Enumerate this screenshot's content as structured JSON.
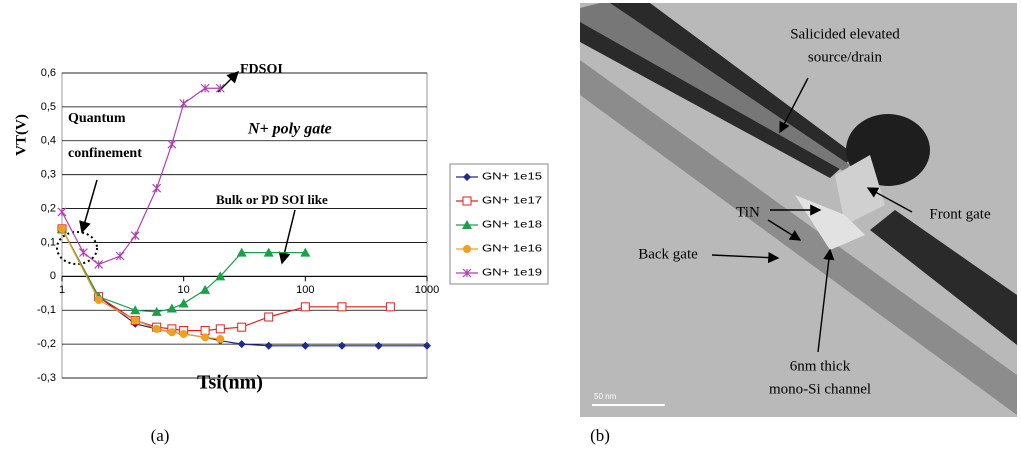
{
  "chart_data": {
    "type": "line",
    "x_label": "Tsi(nm)",
    "y_label": "VT(V)",
    "xscale": "log",
    "xlim": [
      1,
      1000
    ],
    "xticks": [
      1,
      10,
      100,
      1000
    ],
    "ylim": [
      -0.3,
      0.6
    ],
    "yticks": [
      {
        "value": -0.3,
        "label": "-0,3"
      },
      {
        "value": -0.2,
        "label": "-0,2"
      },
      {
        "value": -0.1,
        "label": "-0,1"
      },
      0,
      {
        "value": 0.1,
        "label": "0,1"
      },
      {
        "value": 0.2,
        "label": "0,2"
      },
      {
        "value": 0.3,
        "label": "0,3"
      },
      {
        "value": 0.4,
        "label": "0,4"
      },
      {
        "value": 0.5,
        "label": "0,5"
      },
      {
        "value": 0.6,
        "label": "0,6"
      }
    ],
    "grid": true,
    "legend": "right",
    "annotations": [
      "FDSOI",
      "Quantum",
      "confinement",
      "N+ poly gate",
      "Bulk or PD SOI  like"
    ],
    "series": [
      {
        "name": "GN+ 1e15",
        "color": "#1f2a8c",
        "marker": "diamond",
        "x": [
          1,
          2,
          4,
          6,
          8,
          10,
          15,
          20,
          30,
          50,
          100,
          200,
          400,
          1000
        ],
        "values": [
          0.14,
          -0.06,
          -0.14,
          -0.155,
          -0.165,
          -0.17,
          -0.18,
          -0.19,
          -0.2,
          -0.205,
          -0.205,
          -0.205,
          -0.205,
          -0.205
        ]
      },
      {
        "name": "GN+ 1e17",
        "color": "#e0201e",
        "marker": "square",
        "x": [
          1,
          2,
          4,
          6,
          8,
          10,
          15,
          20,
          30,
          50,
          100,
          200,
          500
        ],
        "values": [
          0.14,
          -0.06,
          -0.13,
          -0.15,
          -0.155,
          -0.16,
          -0.16,
          -0.155,
          -0.15,
          -0.12,
          -0.09,
          -0.09,
          -0.09
        ]
      },
      {
        "name": "GN+ 1e18",
        "color": "#1aa04a",
        "marker": "triangle",
        "x": [
          1,
          2,
          4,
          6,
          8,
          10,
          15,
          20,
          30,
          50,
          100
        ],
        "values": [
          0.14,
          -0.06,
          -0.1,
          -0.105,
          -0.095,
          -0.08,
          -0.04,
          0.0,
          0.07,
          0.07,
          0.07
        ]
      },
      {
        "name": "GN+ 1e16",
        "color": "#f0a020",
        "marker": "circle",
        "x": [
          1,
          2,
          4,
          6,
          8,
          10,
          15,
          20
        ],
        "values": [
          0.14,
          -0.07,
          -0.13,
          -0.155,
          -0.165,
          -0.17,
          -0.18,
          -0.185
        ]
      },
      {
        "name": "GN+ 1e19",
        "color": "#b040b0",
        "marker": "star",
        "x": [
          1,
          1.5,
          2,
          3,
          4,
          6,
          8,
          10,
          15,
          20
        ],
        "values": [
          0.19,
          0.07,
          0.035,
          0.06,
          0.12,
          0.26,
          0.39,
          0.51,
          0.555,
          0.555
        ]
      }
    ]
  },
  "captions": [
    "(a)",
    "(b)"
  ],
  "image": {
    "labels": [
      "Salicided elevated",
      "source/drain",
      "TiN",
      "Front gate",
      "Back gate",
      "6nm thick",
      "mono-Si channel"
    ],
    "scale_bar": "50 nm"
  }
}
